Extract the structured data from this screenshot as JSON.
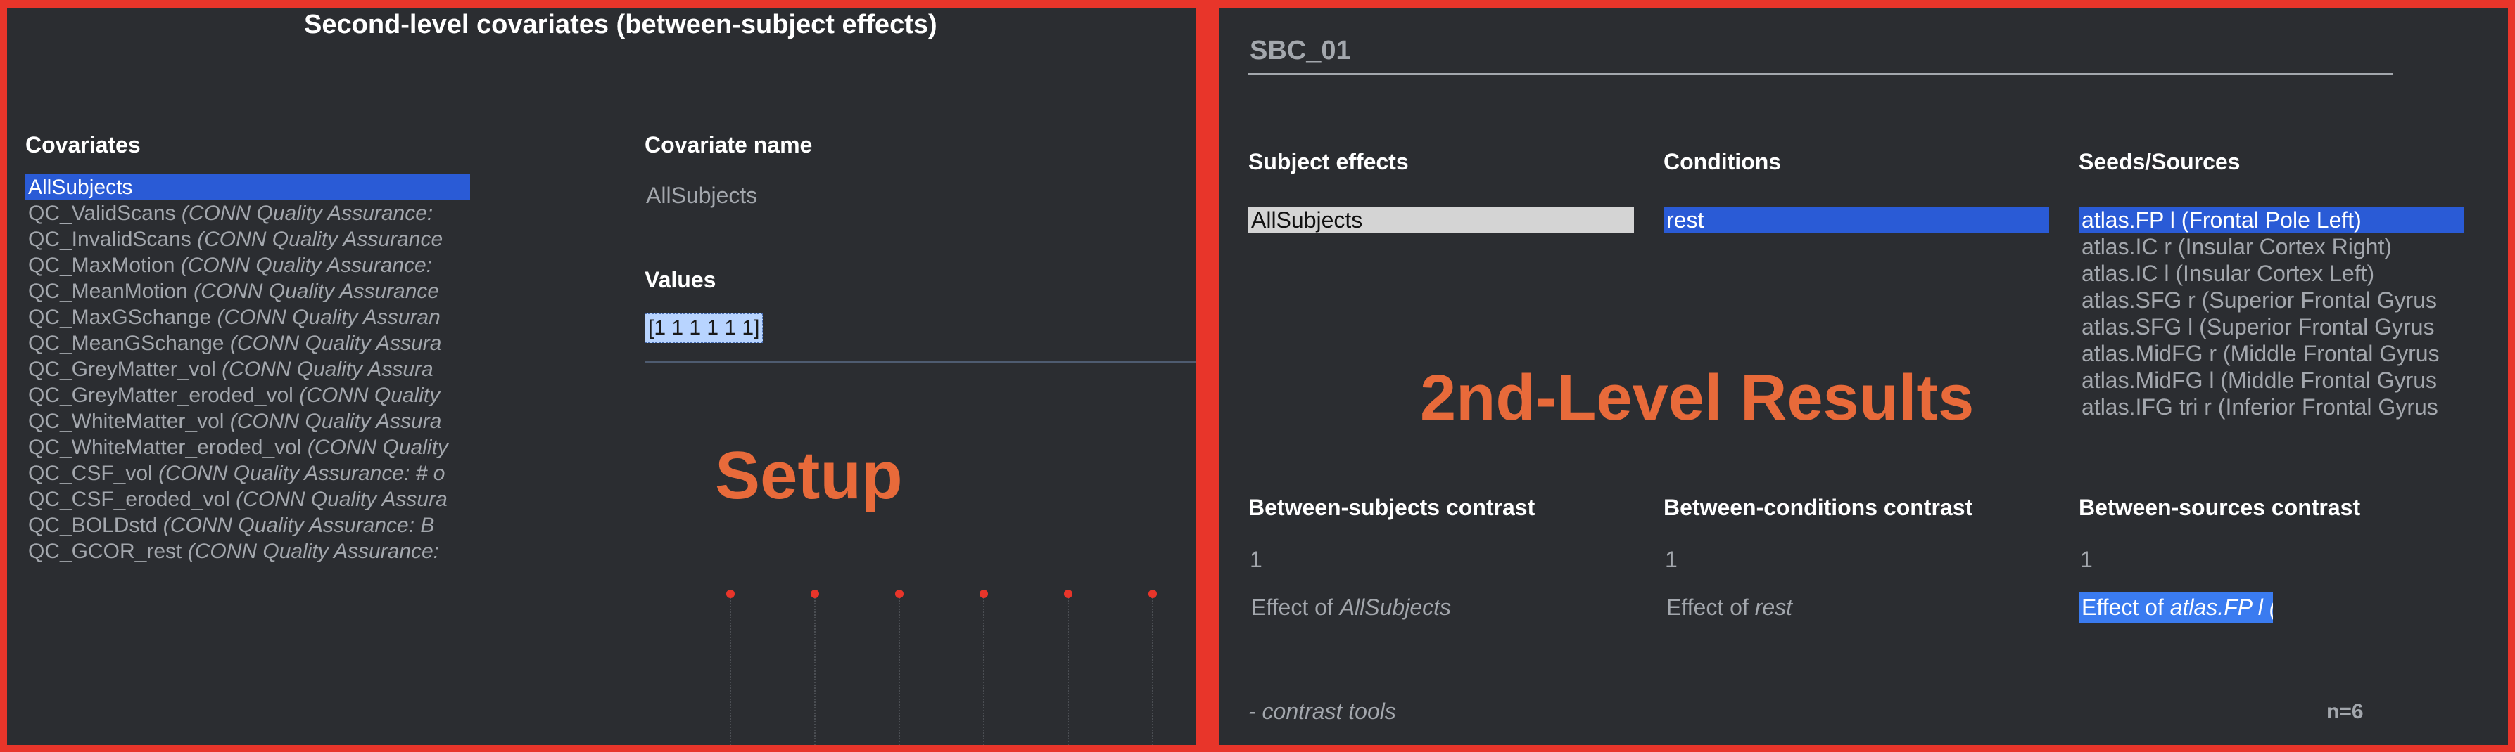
{
  "left": {
    "title": "Second-level covariates (between-subject effects)",
    "covariates_heading": "Covariates",
    "covariates": [
      {
        "name": "AllSubjects",
        "desc": "",
        "selected": true
      },
      {
        "name": "QC_ValidScans",
        "desc": "(CONN Quality Assurance:",
        "selected": false
      },
      {
        "name": "QC_InvalidScans",
        "desc": "(CONN Quality Assurance",
        "selected": false
      },
      {
        "name": "QC_MaxMotion",
        "desc": "(CONN Quality Assurance:",
        "selected": false
      },
      {
        "name": "QC_MeanMotion",
        "desc": "(CONN Quality Assurance",
        "selected": false
      },
      {
        "name": "QC_MaxGSchange",
        "desc": "(CONN Quality Assuran",
        "selected": false
      },
      {
        "name": "QC_MeanGSchange",
        "desc": "(CONN Quality Assura",
        "selected": false
      },
      {
        "name": "QC_GreyMatter_vol",
        "desc": "(CONN Quality Assura",
        "selected": false
      },
      {
        "name": "QC_GreyMatter_eroded_vol",
        "desc": "(CONN Quality",
        "selected": false
      },
      {
        "name": "QC_WhiteMatter_vol",
        "desc": "(CONN Quality Assura",
        "selected": false
      },
      {
        "name": "QC_WhiteMatter_eroded_vol",
        "desc": "(CONN Quality",
        "selected": false
      },
      {
        "name": "QC_CSF_vol",
        "desc": "(CONN Quality Assurance: # o",
        "selected": false
      },
      {
        "name": "QC_CSF_eroded_vol",
        "desc": "(CONN Quality Assura",
        "selected": false
      },
      {
        "name": "QC_BOLDstd",
        "desc": "(CONN Quality Assurance: B",
        "selected": false
      },
      {
        "name": "QC_GCOR_rest",
        "desc": "(CONN Quality Assurance:",
        "selected": false
      }
    ],
    "covariate_name_heading": "Covariate name",
    "covariate_name_value": "AllSubjects",
    "values_heading": "Values",
    "values_value": "[1 1 1 1 1 1]",
    "overlay_label": "Setup"
  },
  "right": {
    "analysis_name": "SBC_01",
    "subject_effects_heading": "Subject effects",
    "subject_effects": [
      {
        "label": "AllSubjects",
        "selected": true
      }
    ],
    "conditions_heading": "Conditions",
    "conditions": [
      {
        "label": "rest",
        "selected": true
      }
    ],
    "seeds_heading": "Seeds/Sources",
    "seeds": [
      {
        "label": "atlas.FP l (Frontal Pole Left)",
        "selected": true
      },
      {
        "label": "atlas.IC r (Insular Cortex Right)",
        "selected": false
      },
      {
        "label": "atlas.IC l (Insular Cortex Left)",
        "selected": false
      },
      {
        "label": "atlas.SFG r (Superior Frontal Gyrus",
        "selected": false
      },
      {
        "label": "atlas.SFG l (Superior Frontal Gyrus",
        "selected": false
      },
      {
        "label": "atlas.MidFG r (Middle Frontal Gyrus",
        "selected": false
      },
      {
        "label": "atlas.MidFG l (Middle Frontal Gyrus",
        "selected": false
      },
      {
        "label": "atlas.IFG tri r (Inferior Frontal Gyrus",
        "selected": false
      }
    ],
    "overlay_label": "2nd-Level Results",
    "between_subjects_heading": "Between-subjects contrast",
    "between_subjects_value": "1",
    "between_subjects_effect_prefix": "Effect of",
    "between_subjects_effect_name": "AllSubjects",
    "between_conditions_heading": "Between-conditions contrast",
    "between_conditions_value": "1",
    "between_conditions_effect_prefix": "Effect of",
    "between_conditions_effect_name": "rest",
    "between_sources_heading": "Between-sources contrast",
    "between_sources_value": "1",
    "between_sources_effect_prefix": "Effect of",
    "between_sources_effect_name": "atlas.FP l (Frontal",
    "contrast_tools": "- contrast tools",
    "n_label": "n=6"
  },
  "colors": {
    "frame": "#e8352a",
    "panel_bg": "#2b2d31",
    "selection_blue": "#2a5bd6",
    "overlay_orange": "#e86a3a"
  }
}
